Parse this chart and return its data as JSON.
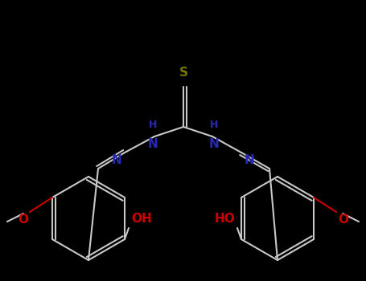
{
  "background": "#000000",
  "bond_color": "#c8c8c8",
  "N_color": "#2828b4",
  "S_color": "#787800",
  "O_color": "#cc0000",
  "lw": 1.5,
  "fs_label": 10,
  "figsize": [
    4.55,
    3.5
  ],
  "dpi": 100,
  "xlim": [
    0,
    455
  ],
  "ylim": [
    0,
    350
  ]
}
